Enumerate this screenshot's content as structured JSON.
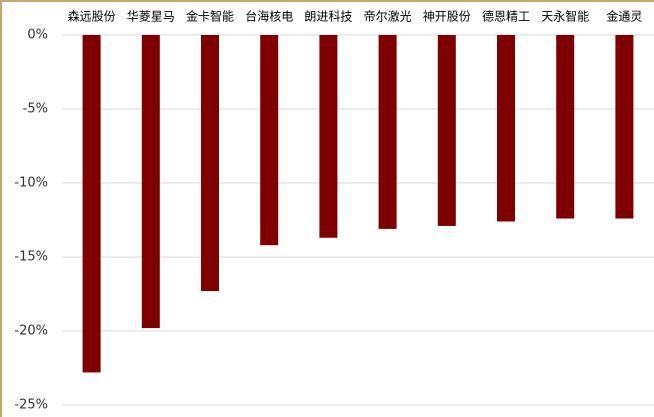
{
  "chart_data": {
    "type": "bar",
    "categories": [
      "森远股份",
      "华菱星马",
      "金卡智能",
      "台海核电",
      "朗进科技",
      "帝尔激光",
      "神开股份",
      "德恩精工",
      "天永智能",
      "金通灵"
    ],
    "values": [
      -22.8,
      -19.8,
      -17.3,
      -14.2,
      -13.7,
      -13.1,
      -12.9,
      -12.6,
      -12.4,
      -12.4
    ],
    "color": "#7f0000",
    "ylim": [
      -25,
      0
    ],
    "yticks": [
      {
        "value": 0,
        "label": "0%"
      },
      {
        "value": -5,
        "label": "-5%"
      },
      {
        "value": -10,
        "label": "-10%"
      },
      {
        "value": -15,
        "label": "-15%"
      },
      {
        "value": -20,
        "label": "-20%"
      },
      {
        "value": -25,
        "label": "-25%"
      }
    ],
    "grid": true
  }
}
